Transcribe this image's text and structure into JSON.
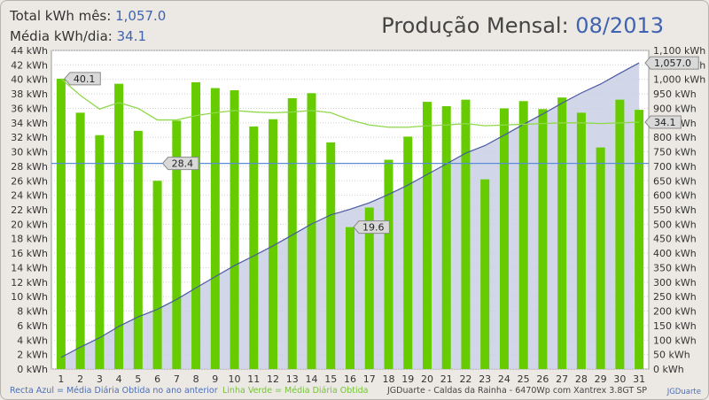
{
  "header": {
    "total_label": "Total kWh mês:",
    "total_value": "1,057.0",
    "avg_label": "Média kWh/dia:",
    "avg_value": "34.1",
    "title_prefix": "Produção Mensal:",
    "title_period": "08/2013"
  },
  "footer": {
    "blue_note": "Recta Azul = Média Diária Obtida no ano anterior",
    "green_note": "Linha Verde = Média Diária Obtida",
    "info": "JGDuarte  -  Caldas da Rainha  -  6470Wp com Xantrex 3.8GT SP",
    "brand": "JGDuarte"
  },
  "chart_data": {
    "type": "bar",
    "categories": [
      "1",
      "2",
      "3",
      "4",
      "5",
      "6",
      "7",
      "8",
      "9",
      "10",
      "11",
      "12",
      "13",
      "14",
      "15",
      "16",
      "17",
      "18",
      "19",
      "20",
      "21",
      "22",
      "23",
      "24",
      "25",
      "26",
      "27",
      "28",
      "29",
      "30",
      "31"
    ],
    "unit_left": "kWh",
    "left_axis": {
      "min": 0,
      "max": 44,
      "step": 2
    },
    "right_axis": {
      "min": 0,
      "max": 1100,
      "step": 50
    },
    "series": [
      {
        "name": "",
        "kind": "bar",
        "axis": "left",
        "color": "#66cc00",
        "values": [
          40.1,
          35.4,
          32.3,
          39.4,
          32.9,
          26.0,
          34.3,
          39.6,
          38.8,
          38.5,
          33.5,
          34.5,
          37.4,
          38.1,
          31.3,
          19.6,
          22.3,
          28.9,
          32.1,
          36.9,
          36.3,
          37.2,
          26.2,
          36.0,
          37.0,
          35.9,
          37.5,
          35.4,
          30.6,
          37.2,
          35.8
        ]
      },
      {
        "name": "Linha Verde = Média Diária Obtida",
        "kind": "line",
        "axis": "left",
        "color": "#8fd84a",
        "values": [
          40.1,
          37.8,
          35.9,
          36.8,
          36.0,
          34.4,
          34.4,
          35.0,
          35.4,
          35.7,
          35.5,
          35.4,
          35.5,
          35.7,
          35.4,
          34.4,
          33.7,
          33.4,
          33.4,
          33.6,
          33.7,
          33.9,
          33.6,
          33.7,
          33.8,
          33.9,
          34.0,
          34.0,
          33.9,
          34.0,
          34.1
        ]
      },
      {
        "name": "Recta Azul = Média Diária Obtida no ano anterior",
        "kind": "hline",
        "axis": "left",
        "color": "#5b8dd6",
        "value": 28.4
      },
      {
        "name": "",
        "kind": "area",
        "axis": "right",
        "color": "#4a5aa0",
        "fill": "#c9cfe4",
        "values": [
          40.1,
          75.5,
          107.8,
          147.2,
          180.1,
          206.1,
          240.4,
          280.0,
          318.8,
          357.3,
          390.8,
          425.3,
          462.7,
          500.8,
          532.1,
          551.7,
          574.0,
          602.9,
          635.0,
          671.9,
          708.2,
          745.4,
          771.6,
          807.6,
          844.6,
          880.5,
          918.0,
          953.4,
          984.0,
          1021.2,
          1057.0
        ]
      }
    ],
    "annotations": [
      {
        "label": "40.1",
        "series": "bars",
        "day": 1
      },
      {
        "label": "28.4",
        "series": "blue-line"
      },
      {
        "label": "19.6",
        "series": "bars",
        "day": 16
      },
      {
        "label": "1,057.0",
        "series": "cumulative",
        "day": 31
      },
      {
        "label": "34.1",
        "series": "green-line",
        "day": 31
      }
    ]
  }
}
